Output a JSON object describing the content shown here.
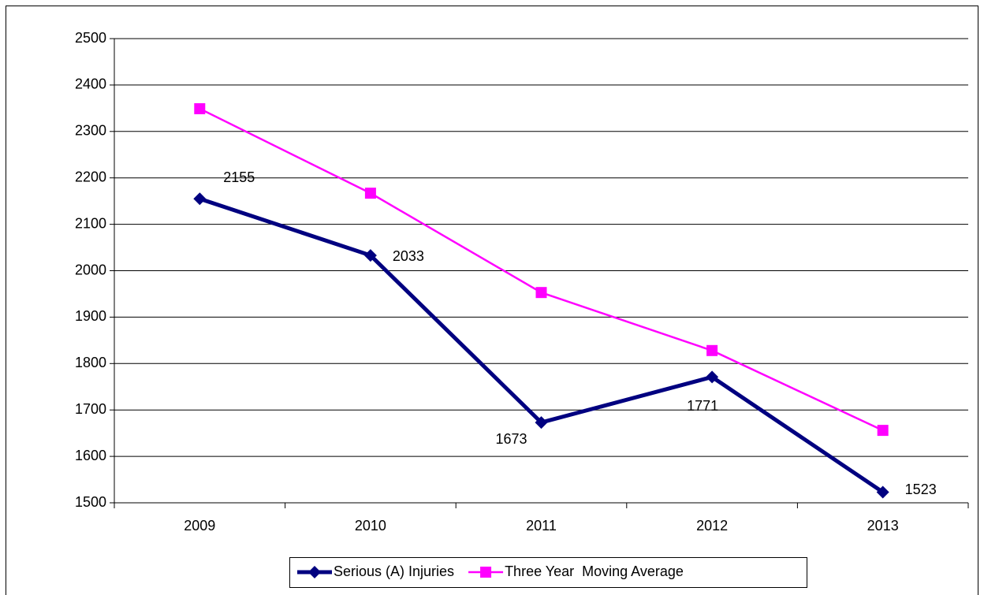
{
  "chart_data": {
    "type": "line",
    "categories": [
      "2009",
      "2010",
      "2011",
      "2012",
      "2013"
    ],
    "series": [
      {
        "name": "Serious (A) Injuries",
        "color": "#000080",
        "marker": "diamond",
        "values": [
          2155,
          2033,
          1673,
          1771,
          1523
        ],
        "value_labels": [
          "2155",
          "2033",
          "1673",
          "1771",
          "1523"
        ]
      },
      {
        "name": "Three Year  Moving Average",
        "color": "#ff00ff",
        "marker": "square",
        "values": [
          2349,
          2167,
          1953,
          1828,
          1656
        ]
      }
    ],
    "ylim": [
      1500,
      2500
    ],
    "yticks": [
      1500,
      1600,
      1700,
      1800,
      1900,
      2000,
      2100,
      2200,
      2300,
      2400,
      2500
    ],
    "grid": true,
    "legend": "bottom"
  }
}
